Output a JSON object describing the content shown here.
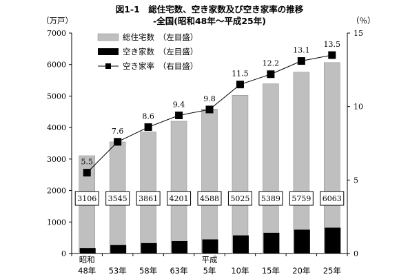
{
  "chart_data": {
    "type": "bar",
    "title": "図1-1　総住宅数、空き家数及び空き家率の推移",
    "subtitle": "-全国(昭和48年～平成25年)",
    "y_left_unit": "（万戸）",
    "y_right_unit": "（％）",
    "categories": [
      {
        "era": "昭和",
        "label": "48年"
      },
      {
        "era": "",
        "label": "53年"
      },
      {
        "era": "",
        "label": "58年"
      },
      {
        "era": "",
        "label": "63年"
      },
      {
        "era": "平成",
        "label": "5年"
      },
      {
        "era": "",
        "label": "10年"
      },
      {
        "era": "",
        "label": "15年"
      },
      {
        "era": "",
        "label": "20年"
      },
      {
        "era": "",
        "label": "25年"
      }
    ],
    "ylim_left": [
      0,
      7000
    ],
    "yticks_left": [
      0,
      1000,
      2000,
      3000,
      4000,
      5000,
      6000,
      7000
    ],
    "ylim_right": [
      0,
      15
    ],
    "yticks_right": [
      0,
      5,
      10,
      15
    ],
    "grid": false,
    "legend_position": "top-left",
    "series": [
      {
        "name": "総住宅数　（左目盛）",
        "type": "bar",
        "axis": "left",
        "color": "#bfbfbf",
        "values": [
          3106,
          3545,
          3861,
          4201,
          4588,
          5025,
          5389,
          5759,
          6063
        ]
      },
      {
        "name": "空き家数　（左目盛）",
        "type": "bar",
        "axis": "left",
        "color": "#000000",
        "values": [
          172,
          268,
          330,
          394,
          448,
          576,
          659,
          757,
          820
        ]
      },
      {
        "name": "空き家率　（右目盛）",
        "type": "line",
        "axis": "right",
        "color": "#000000",
        "values": [
          5.5,
          7.6,
          8.6,
          9.4,
          9.8,
          11.5,
          12.2,
          13.1,
          13.5
        ]
      }
    ]
  }
}
